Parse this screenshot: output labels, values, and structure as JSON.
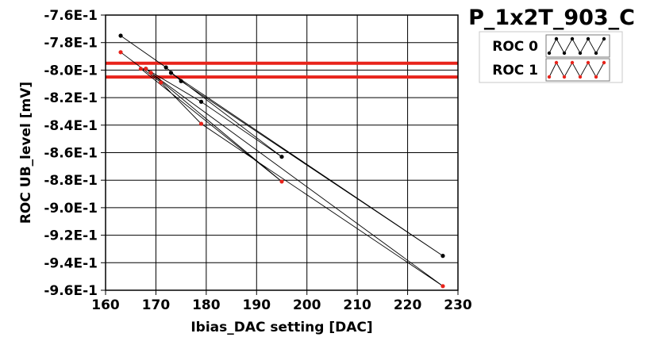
{
  "chart_data": {
    "type": "line",
    "title": "P_1x2T_903_C",
    "xlabel": "Ibias_DAC setting [DAC]",
    "ylabel": "ROC UB_level [mV]",
    "xlim": [
      160,
      230
    ],
    "ylim": [
      -0.96,
      -0.76
    ],
    "x_ticks": [
      "160",
      "170",
      "180",
      "190",
      "200",
      "210",
      "220",
      "230"
    ],
    "y_ticks": [
      "-7.6E-1",
      "-7.8E-1",
      "-8.0E-1",
      "-8.2E-1",
      "-8.4E-1",
      "-8.6E-1",
      "-8.8E-1",
      "-9.0E-1",
      "-9.2E-1",
      "-9.4E-1",
      "-9.6E-1"
    ],
    "grid": true,
    "legend_position": "top-right",
    "series": [
      {
        "name": "ROC 0",
        "color": "#000000",
        "x": [
          163,
          172,
          175,
          227,
          173,
          195,
          179,
          168,
          169
        ],
        "y": [
          -0.775,
          -0.798,
          -0.808,
          -0.935,
          -0.802,
          -0.863,
          -0.823,
          -0.799,
          -0.802
        ]
      },
      {
        "name": "ROC 1",
        "color": "#e8231b",
        "x": [
          163,
          171,
          179,
          227,
          169,
          195,
          167,
          168,
          169
        ],
        "y": [
          -0.787,
          -0.809,
          -0.839,
          -0.957,
          -0.802,
          -0.881,
          -0.799,
          -0.799,
          -0.802
        ]
      }
    ],
    "threshold_lines": [
      {
        "color": "#e8231b",
        "y": -0.795
      },
      {
        "color": "#e8231b",
        "y": -0.805
      }
    ]
  }
}
